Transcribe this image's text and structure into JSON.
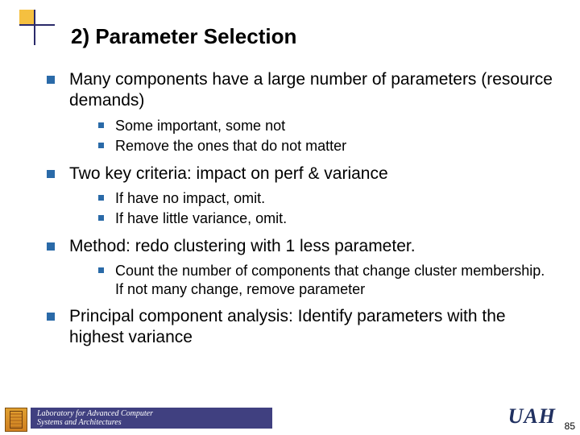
{
  "decor": {
    "accent_yellow": "#f5c040",
    "accent_line": "#2a2a6a",
    "bullet_color": "#2a6aa8"
  },
  "title": "2) Parameter Selection",
  "bullets": [
    {
      "text": "Many components have a large number of parameters (resource demands)",
      "sub": [
        "Some important, some not",
        "Remove the ones that do not matter"
      ]
    },
    {
      "text": "Two key criteria: impact on perf & variance",
      "sub": [
        "If have no impact, omit.",
        "If have little variance, omit."
      ]
    },
    {
      "text": "Method: redo clustering with 1 less parameter.",
      "sub": [
        "Count the number of components that change cluster membership.  If not many change, remove parameter"
      ]
    },
    {
      "text": "Principal component analysis: Identify parameters with the highest variance",
      "sub": []
    }
  ],
  "footer": {
    "lab_line1": "Laboratory for Advanced Computer",
    "lab_line2": "Systems and Architectures",
    "bar_bg": "#404080",
    "logo_text": "UAH",
    "logo_color": "#203060",
    "page_number": "85"
  }
}
